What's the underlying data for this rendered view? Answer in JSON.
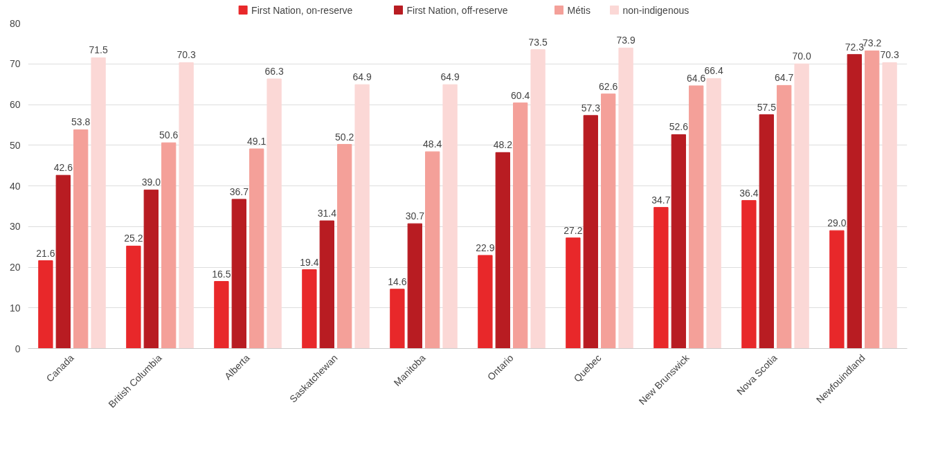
{
  "chart_data": {
    "type": "bar",
    "categories": [
      "Canada",
      "British Columbia",
      "Alberta",
      "Saskatchewan",
      "Manitoba",
      "Ontario",
      "Quebec",
      "New Brunswick",
      "Nova Scotia",
      "Newfouindland"
    ],
    "series": [
      {
        "name": "First Nation, on-reserve",
        "color": "#e8282a",
        "values": [
          21.6,
          25.2,
          16.5,
          19.4,
          14.6,
          22.9,
          27.2,
          34.7,
          36.4,
          29
        ],
        "value_labels": [
          "21.6",
          "25.2",
          "16.5",
          "19.4",
          "14.6",
          "22.9",
          "27.2",
          "34.7",
          "36.4",
          "29.0"
        ]
      },
      {
        "name": "First Nation, off-reserve",
        "color": "#b81c22",
        "values": [
          42.6,
          39,
          36.7,
          31.4,
          30.7,
          48.2,
          57.3,
          52.6,
          57.5,
          72.3
        ],
        "value_labels": [
          "42.6",
          "39.0",
          "36.7",
          "31.4",
          "30.7",
          "48.2",
          "57.3",
          "52.6",
          "57.5",
          "72.3"
        ]
      },
      {
        "name": "Métis",
        "color": "#f4a099",
        "values": [
          53.8,
          50.6,
          49.1,
          50.2,
          48.4,
          60.4,
          62.6,
          64.6,
          64.7,
          73.2
        ],
        "value_labels": [
          "53.8",
          "50.6",
          "49.1",
          "50.2",
          "48.4",
          "60.4",
          "62.6",
          "64.6",
          "64.7",
          "73.2"
        ]
      },
      {
        "name": "non-indigenous",
        "color": "#fbd8d6",
        "values": [
          71.5,
          70.3,
          66.3,
          64.9,
          64.9,
          73.5,
          73.9,
          66.4,
          70,
          70.3
        ],
        "value_labels": [
          "71.5",
          "70.3",
          "66.3",
          "64.9",
          "64.9",
          "73.5",
          "73.9",
          "66.4",
          "70.0",
          "70.3"
        ]
      }
    ],
    "ylim": [
      0,
      80
    ],
    "yticks": [
      0,
      10,
      20,
      30,
      40,
      50,
      60,
      70,
      80
    ],
    "grid": "y",
    "legend": "top"
  }
}
